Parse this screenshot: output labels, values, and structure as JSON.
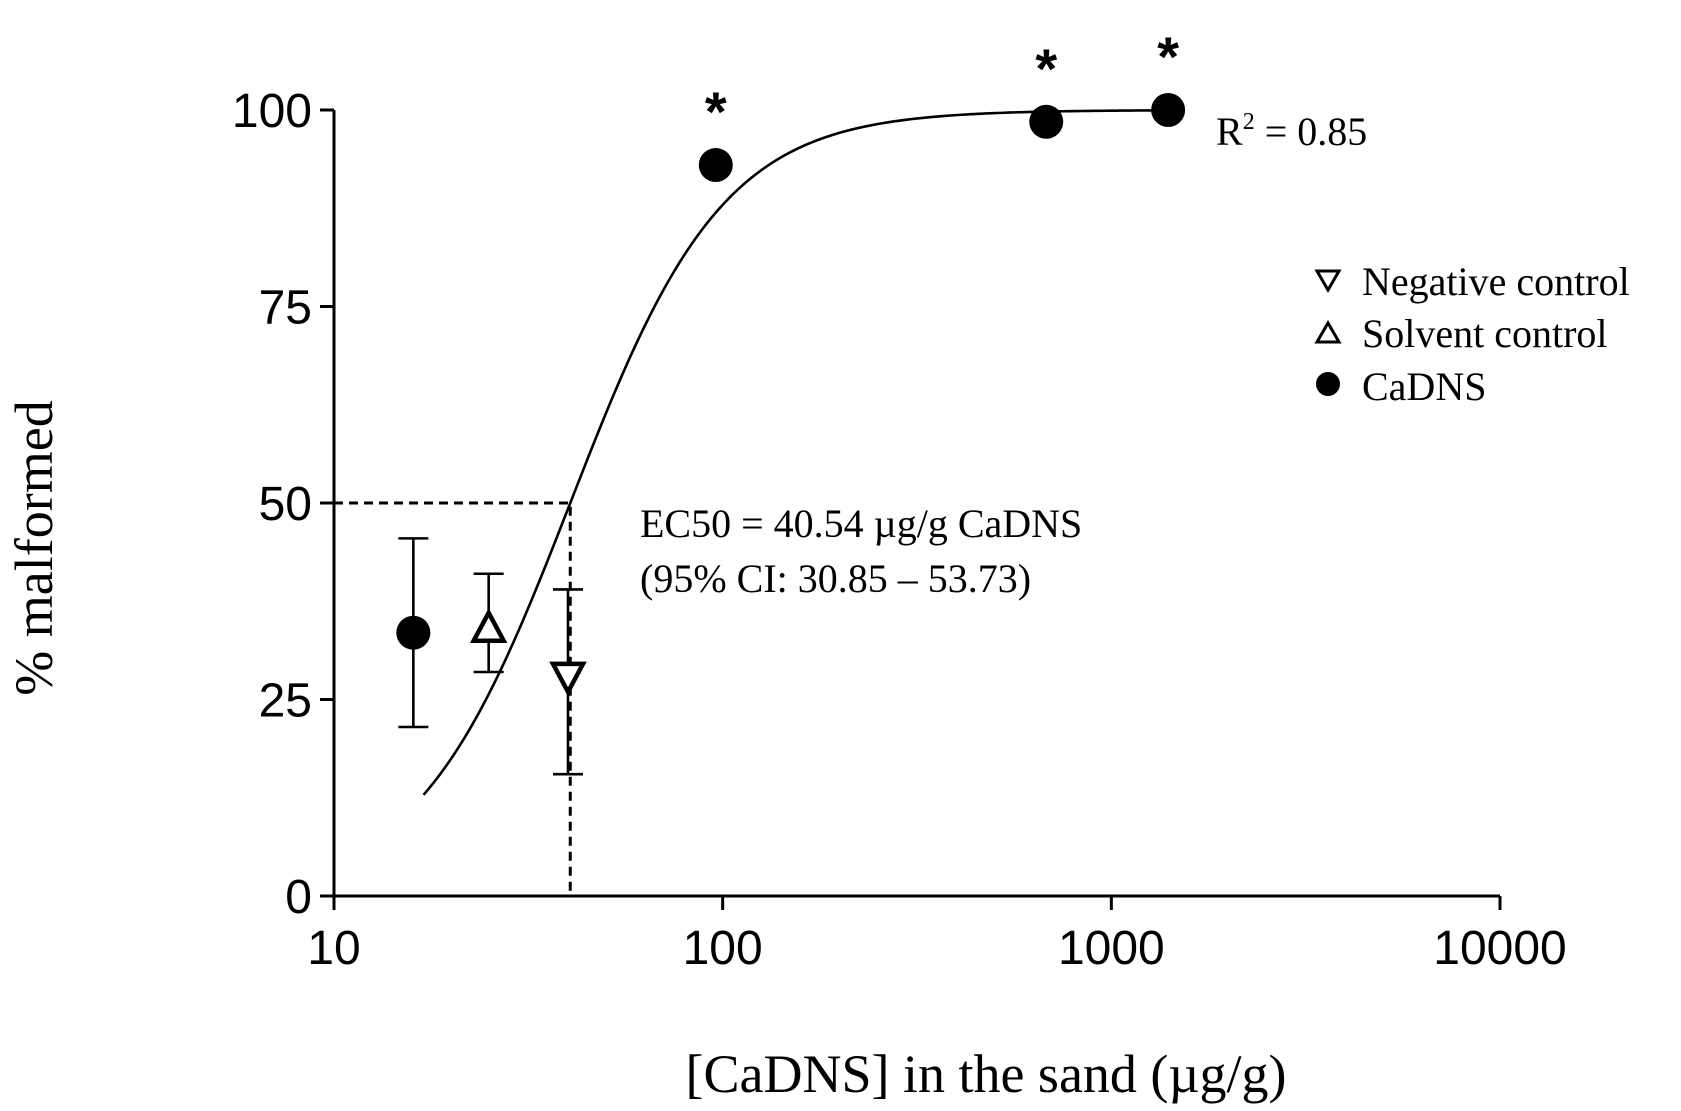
{
  "chart_data": {
    "type": "scatter",
    "xscale": "log",
    "xlim": [
      10,
      10000
    ],
    "ylim": [
      0,
      100
    ],
    "xlabel": "[CaDNS] in the sand (µg/g)",
    "ylabel": "% malformed",
    "xticks": [
      10,
      100,
      1000,
      10000
    ],
    "xtick_labels": [
      "10",
      "100",
      "1000",
      "10000"
    ],
    "yticks": [
      0,
      25,
      50,
      75,
      100
    ],
    "ytick_labels": [
      "0",
      "25",
      "50",
      "75",
      "100"
    ],
    "series": [
      {
        "name": "Negative control",
        "marker": "triangle-down-open",
        "points": [
          {
            "x": 40,
            "y": 28,
            "err_low": 15.5,
            "err_high": 39
          }
        ]
      },
      {
        "name": "Solvent control",
        "marker": "triangle-up-open",
        "points": [
          {
            "x": 25,
            "y": 34,
            "err_low": 28.5,
            "err_high": 41
          }
        ]
      },
      {
        "name": "CaDNS",
        "marker": "circle-filled",
        "points": [
          {
            "x": 16,
            "y": 33.5,
            "err_low": 21.5,
            "err_high": 45.5,
            "significant": false
          },
          {
            "x": 96,
            "y": 93,
            "significant": true
          },
          {
            "x": 680,
            "y": 98.5,
            "significant": true
          },
          {
            "x": 1400,
            "y": 100,
            "significant": true
          }
        ]
      }
    ],
    "fit": {
      "model": "sigmoid dose-response",
      "ec50": 40.54,
      "hill": 2.2,
      "bottom": 0,
      "top": 100,
      "x_range": [
        17,
        1400
      ]
    },
    "ec50_marker": {
      "x": 40.54,
      "y": 50
    },
    "significance_symbol": "*",
    "annotations": {
      "r2_prefix": "R",
      "r2_sup": "2",
      "r2_value": " = 0.85",
      "ec50_line1": "EC50 = 40.54 µg/g CaDNS",
      "ec50_line2": "(95% CI: 30.85 – 53.73)"
    },
    "legend": {
      "placement": "right",
      "entries": [
        "Negative control",
        "Solvent control",
        "CaDNS"
      ]
    }
  }
}
